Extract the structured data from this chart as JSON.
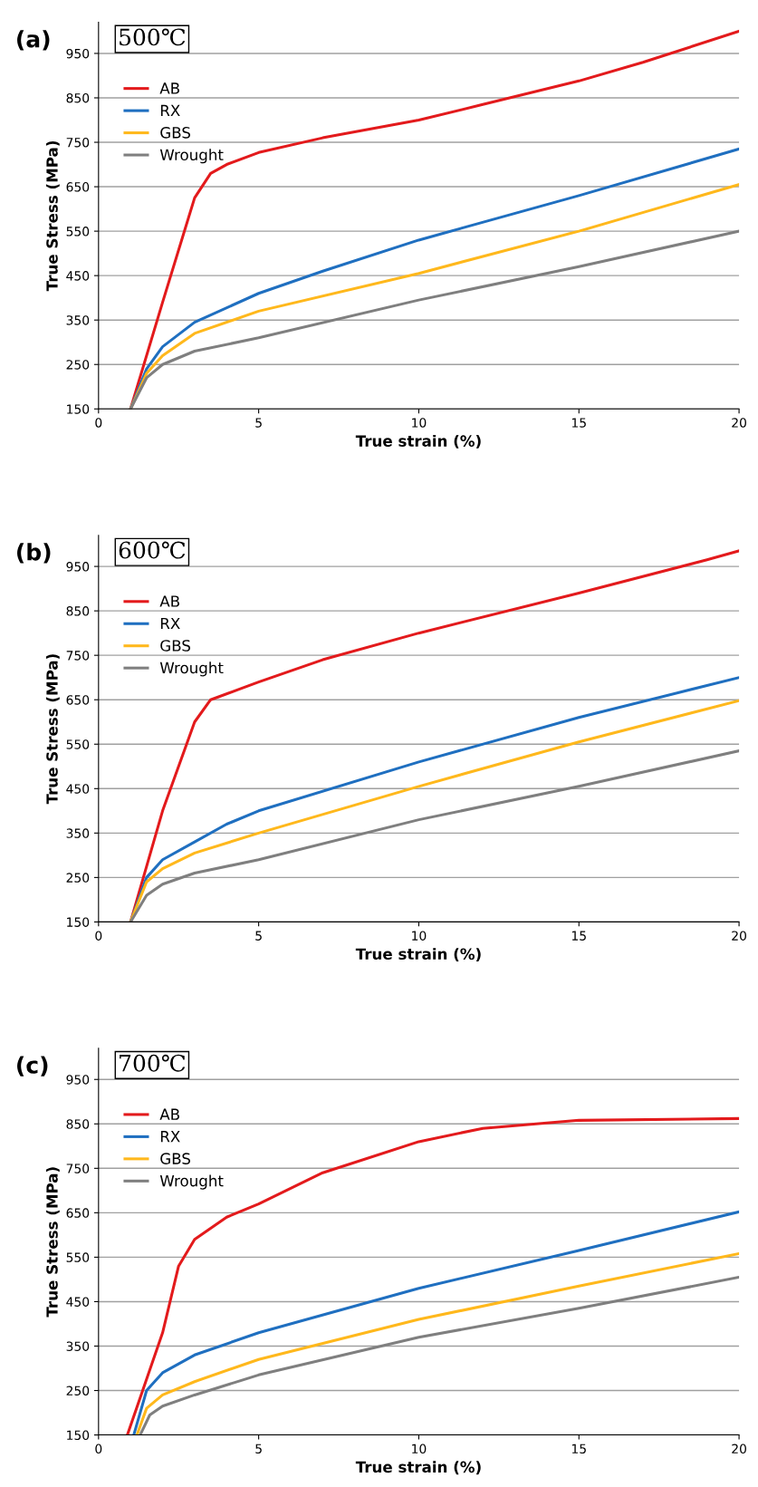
{
  "chart_data": [
    {
      "type": "line",
      "annotations": [
        "(a)",
        "500℃"
      ],
      "xlabel": "True strain (%)",
      "ylabel": "True Stress (MPa)",
      "xlim": [
        0,
        20
      ],
      "ylim": [
        150,
        1020
      ],
      "xticks": [
        0,
        5,
        10,
        15,
        20
      ],
      "yticks": [
        150,
        250,
        350,
        450,
        550,
        650,
        750,
        850,
        950
      ],
      "grid": "y",
      "legend": "top left",
      "series": [
        {
          "name": "AB",
          "color": "#e31a1c",
          "x": [
            1,
            2,
            3,
            3.5,
            4,
            5,
            7,
            10,
            12,
            15,
            17,
            20
          ],
          "values": [
            150,
            390,
            625,
            680,
            700,
            727,
            760,
            800,
            835,
            888,
            930,
            1000
          ]
        },
        {
          "name": "RX",
          "color": "#1f6fc0",
          "x": [
            1,
            1.5,
            2,
            3,
            5,
            7,
            10,
            15,
            20
          ],
          "values": [
            150,
            240,
            290,
            345,
            410,
            460,
            530,
            630,
            735
          ]
        },
        {
          "name": "GBS",
          "color": "#ffb81c",
          "x": [
            1,
            1.5,
            2,
            3,
            5,
            10,
            15,
            20
          ],
          "values": [
            150,
            230,
            270,
            320,
            370,
            455,
            550,
            655
          ]
        },
        {
          "name": "Wrought",
          "color": "#7f7f7f",
          "x": [
            1,
            1.5,
            2,
            3,
            5,
            10,
            15,
            20
          ],
          "values": [
            150,
            220,
            250,
            280,
            310,
            395,
            470,
            550
          ]
        }
      ]
    },
    {
      "type": "line",
      "annotations": [
        "(b)",
        "600℃"
      ],
      "xlabel": "True strain (%)",
      "ylabel": "True Stress (MPa)",
      "xlim": [
        0,
        20
      ],
      "ylim": [
        150,
        1020
      ],
      "xticks": [
        0,
        5,
        10,
        15,
        20
      ],
      "yticks": [
        150,
        250,
        350,
        450,
        550,
        650,
        750,
        850,
        950
      ],
      "grid": "y",
      "legend": "top left",
      "series": [
        {
          "name": "AB",
          "color": "#e31a1c",
          "x": [
            1,
            2,
            3,
            3.5,
            5,
            7,
            10,
            15,
            19,
            20
          ],
          "values": [
            150,
            400,
            600,
            650,
            690,
            740,
            800,
            890,
            965,
            985
          ]
        },
        {
          "name": "RX",
          "color": "#1f6fc0",
          "x": [
            1,
            1.5,
            2,
            3,
            4,
            5,
            10,
            15,
            20
          ],
          "values": [
            150,
            250,
            290,
            330,
            370,
            400,
            510,
            610,
            700
          ]
        },
        {
          "name": "GBS",
          "color": "#ffb81c",
          "x": [
            1,
            1.5,
            2,
            3,
            5,
            10,
            15,
            20
          ],
          "values": [
            150,
            240,
            270,
            305,
            350,
            455,
            555,
            648
          ]
        },
        {
          "name": "Wrought",
          "color": "#7f7f7f",
          "x": [
            1,
            1.5,
            2,
            3,
            5,
            10,
            15,
            20
          ],
          "values": [
            150,
            210,
            235,
            260,
            290,
            380,
            455,
            535
          ]
        }
      ]
    },
    {
      "type": "line",
      "annotations": [
        "(c)",
        "700℃"
      ],
      "xlabel": "True strain (%)",
      "ylabel": "True Stress (MPa)",
      "xlim": [
        0,
        20
      ],
      "ylim": [
        150,
        1020
      ],
      "xticks": [
        0,
        5,
        10,
        15,
        20
      ],
      "yticks": [
        150,
        250,
        350,
        450,
        550,
        650,
        750,
        850,
        950
      ],
      "grid": "y",
      "legend": "top left",
      "series": [
        {
          "name": "AB",
          "color": "#e31a1c",
          "x": [
            0.9,
            2,
            2.5,
            3,
            4,
            5,
            7,
            10,
            12,
            15,
            20
          ],
          "values": [
            150,
            380,
            530,
            590,
            640,
            670,
            740,
            810,
            840,
            858,
            862
          ]
        },
        {
          "name": "RX",
          "color": "#1f6fc0",
          "x": [
            1.1,
            1.5,
            2,
            3,
            5,
            10,
            15,
            20
          ],
          "values": [
            150,
            250,
            290,
            330,
            380,
            480,
            565,
            652
          ]
        },
        {
          "name": "GBS",
          "color": "#ffb81c",
          "x": [
            1.2,
            1.5,
            2,
            3,
            5,
            10,
            15,
            20
          ],
          "values": [
            150,
            210,
            240,
            270,
            320,
            410,
            485,
            558
          ]
        },
        {
          "name": "Wrought",
          "color": "#7f7f7f",
          "x": [
            1.3,
            1.6,
            2,
            3,
            5,
            10,
            15,
            20
          ],
          "values": [
            150,
            195,
            215,
            240,
            285,
            370,
            435,
            505
          ]
        }
      ]
    }
  ]
}
